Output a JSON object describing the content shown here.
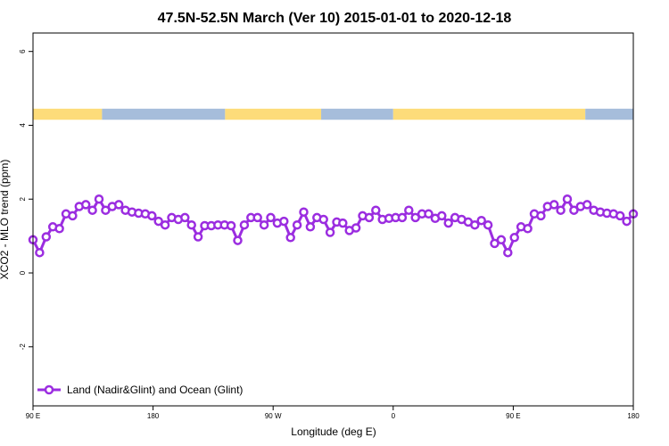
{
  "chart_data": {
    "type": "line",
    "title": "47.5N-52.5N March (Ver 10)   2015-01-01 to 2020-12-18",
    "xlabel": "Longitude (deg E)",
    "ylabel": "XCO2 - MLO trend (ppm)",
    "xlim": [
      0,
      100
    ],
    "ylim": [
      -3.6,
      6.5
    ],
    "xticks": [
      {
        "pos": 0,
        "label": "90 E"
      },
      {
        "pos": 20,
        "label": "180"
      },
      {
        "pos": 40,
        "label": "90 W"
      },
      {
        "pos": 60,
        "label": "0"
      },
      {
        "pos": 80,
        "label": "90 E"
      },
      {
        "pos": 100,
        "label": "180"
      }
    ],
    "yticks": [
      {
        "value": 6,
        "label": "6"
      },
      {
        "value": 4,
        "label": "4"
      },
      {
        "value": 2,
        "label": "2"
      },
      {
        "value": 0,
        "label": "0"
      },
      {
        "value": -2,
        "label": "-2"
      }
    ],
    "legend": {
      "label": "Land (Nadir&Glint) and Ocean (Glint)",
      "placement": "bottom-left"
    },
    "colors": {
      "series": "#9b2de0",
      "land": "#fddc7a",
      "ocean": "#a6bddb"
    },
    "land_ocean_strip": {
      "y_range": [
        4.15,
        4.45
      ],
      "segments": [
        {
          "type": "land",
          "from": 0,
          "to": 11.5
        },
        {
          "type": "ocean",
          "from": 11.5,
          "to": 32
        },
        {
          "type": "land",
          "from": 32,
          "to": 48
        },
        {
          "type": "ocean",
          "from": 48,
          "to": 60
        },
        {
          "type": "land",
          "from": 60,
          "to": 92
        },
        {
          "type": "ocean",
          "from": 92,
          "to": 100
        }
      ]
    },
    "series": [
      {
        "name": "Land (Nadir&Glint) and Ocean (Glint)",
        "x": [
          0,
          1.1,
          2.2,
          3.3,
          4.4,
          5.5,
          6.6,
          7.7,
          8.8,
          9.9,
          11.0,
          12.1,
          13.2,
          14.3,
          15.4,
          16.5,
          17.6,
          18.7,
          19.8,
          20.9,
          22.0,
          23.1,
          24.2,
          25.3,
          26.4,
          27.5,
          28.6,
          29.7,
          30.8,
          31.9,
          33.0,
          34.1,
          35.2,
          36.3,
          37.4,
          38.5,
          39.6,
          40.7,
          41.8,
          42.9,
          44.0,
          45.1,
          46.2,
          47.3,
          48.4,
          49.5,
          50.6,
          51.6,
          52.7,
          53.8,
          54.9,
          56.0,
          57.1,
          58.2,
          59.3,
          60.4,
          61.5,
          62.6,
          63.7,
          64.8,
          65.9,
          67.0,
          68.1,
          69.2,
          70.3,
          71.4,
          72.5,
          73.6,
          74.7,
          75.8,
          76.9,
          78.0,
          79.1,
          80.2,
          81.3,
          82.4,
          83.5,
          84.6,
          85.7,
          86.8,
          87.9,
          89.0,
          90.1,
          91.2,
          92.3,
          93.4,
          94.5,
          95.6,
          96.7,
          97.8,
          98.9,
          100
        ],
        "y": [
          0.9,
          0.55,
          0.98,
          1.25,
          1.2,
          1.6,
          1.55,
          1.8,
          1.85,
          1.7,
          2.0,
          1.7,
          1.8,
          1.85,
          1.7,
          1.65,
          1.62,
          1.6,
          1.55,
          1.4,
          1.3,
          1.5,
          1.45,
          1.5,
          1.3,
          0.98,
          1.28,
          1.28,
          1.3,
          1.3,
          1.28,
          0.88,
          1.3,
          1.5,
          1.5,
          1.3,
          1.5,
          1.35,
          1.4,
          0.96,
          1.3,
          1.65,
          1.25,
          1.5,
          1.45,
          1.1,
          1.38,
          1.35,
          1.15,
          1.22,
          1.55,
          1.5,
          1.7,
          1.45,
          1.48,
          1.5,
          1.5,
          1.7,
          1.5,
          1.6,
          1.6,
          1.48,
          1.55,
          1.35,
          1.5,
          1.45,
          1.38,
          1.3,
          1.42,
          1.3,
          0.8,
          0.9,
          0.55,
          0.96,
          1.25,
          1.2,
          1.6,
          1.55,
          1.8,
          1.85,
          1.7,
          2.0,
          1.7,
          1.8,
          1.85,
          1.7,
          1.65,
          1.62,
          1.6,
          1.55,
          1.4,
          1.6
        ]
      }
    ]
  }
}
